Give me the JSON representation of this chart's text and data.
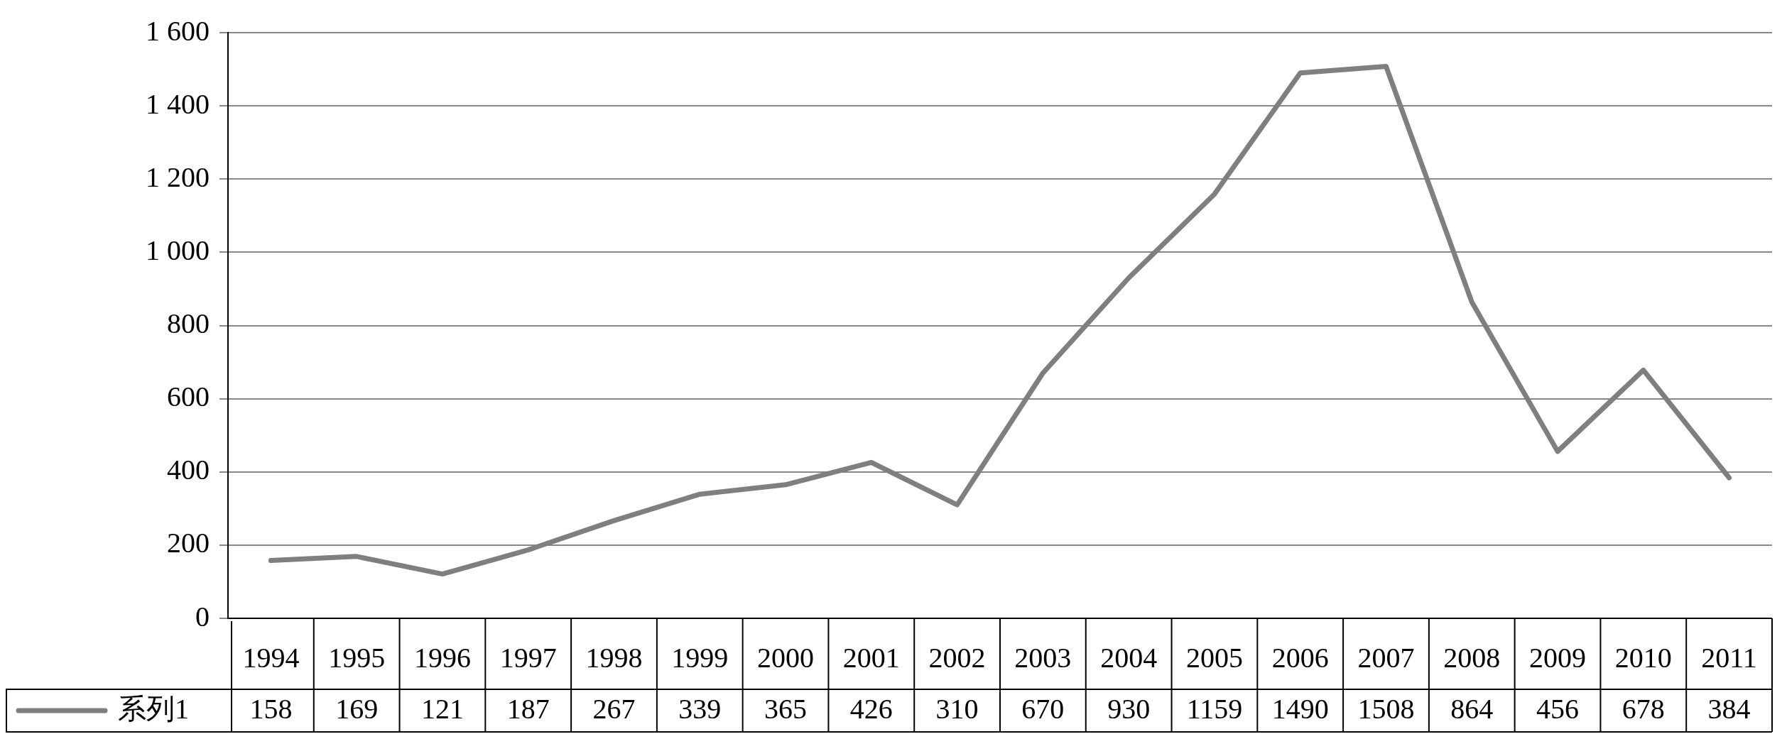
{
  "chart_data": {
    "type": "line",
    "categories": [
      "1994",
      "1995",
      "1996",
      "1997",
      "1998",
      "1999",
      "2000",
      "2001",
      "2002",
      "2003",
      "2004",
      "2005",
      "2006",
      "2007",
      "2008",
      "2009",
      "2010",
      "2011"
    ],
    "series": [
      {
        "name": "系列1",
        "color": "#7f7f7f",
        "values": [
          158,
          169,
          121,
          187,
          267,
          339,
          365,
          426,
          310,
          670,
          930,
          1159,
          1490,
          1508,
          864,
          456,
          678,
          384
        ]
      }
    ],
    "ylim": [
      0,
      1600
    ],
    "yticks": [
      0,
      200,
      400,
      600,
      800,
      {
        "value": 1000,
        "label": "1 000"
      },
      {
        "value": 1200,
        "label": "1 200"
      },
      {
        "value": 1400,
        "label": "1 400"
      },
      {
        "value": 1600,
        "label": "1 600"
      }
    ],
    "grid": "y",
    "legend": "bottom",
    "data_labels": true,
    "marker": "none",
    "line_style": "solid"
  }
}
